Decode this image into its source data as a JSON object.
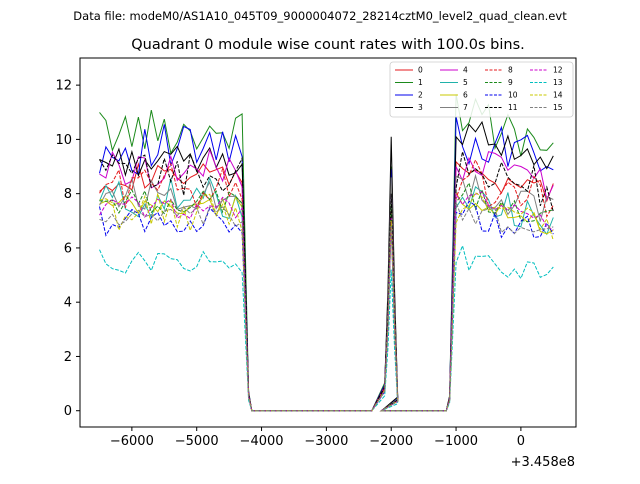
{
  "figure": {
    "suptitle": "Data file: modeM0/AS1A10_045T09_9000004072_28214cztM0_level2_quad_clean.evt"
  },
  "chart_data": {
    "type": "line",
    "title": "Quadrant 0 module wise count rates with 100.0s bins.",
    "xlabel": "",
    "ylabel": "",
    "x_offset_label": "+3.458e8",
    "xlim": [
      -6800,
      850
    ],
    "ylim": [
      -0.6,
      13.0
    ],
    "xticks": [
      -6000,
      -5000,
      -4000,
      -3000,
      -2000,
      -1000,
      0
    ],
    "xtick_labels": [
      "−6000",
      "−5000",
      "−4000",
      "−3000",
      "−2000",
      "−1000",
      "0"
    ],
    "yticks": [
      0,
      2,
      4,
      6,
      8,
      10,
      12
    ],
    "ytick_labels": [
      "0",
      "2",
      "4",
      "6",
      "8",
      "10",
      "12"
    ],
    "grid": false,
    "legend_location": "top-right",
    "legend_columns": 4,
    "segments": [
      {
        "start": -6500,
        "end": -4250,
        "step": 100
      },
      {
        "start": -2050,
        "end": -1950,
        "step": 50
      },
      {
        "start": -1000,
        "end": 550,
        "step": 100
      }
    ],
    "zero_x": [
      -4150,
      -4050,
      -3900,
      -3700,
      -3500,
      -3300,
      -3100,
      -2900,
      -2700,
      -2500,
      -2300,
      -2150,
      -1850,
      -1700,
      -1500,
      -1300,
      -1150
    ],
    "edge_points": [
      {
        "x": -4200,
        "frac": 0.07
      },
      {
        "x": -2100,
        "frac": 0.1
      },
      {
        "x": -1900,
        "frac": 0.05
      },
      {
        "x": -1100,
        "frac": 0.05
      }
    ],
    "end_point": {
      "x": 550,
      "frac": 0.32
    },
    "series": [
      {
        "name": "0",
        "color": "#e41a1c",
        "dash": "solid",
        "seg1": 8.6,
        "spike": 7.8,
        "seg3": 9.0
      },
      {
        "name": "1",
        "color": "#1b8a1b",
        "dash": "solid",
        "seg1": 10.3,
        "spike": 9.0,
        "seg3": 10.9
      },
      {
        "name": "2",
        "color": "#0000ee",
        "dash": "solid",
        "seg1": 9.6,
        "spike": 8.9,
        "seg3": 10.2
      },
      {
        "name": "3",
        "color": "#000000",
        "dash": "solid",
        "seg1": 9.2,
        "spike": 10.1,
        "seg3": 10.5
      },
      {
        "name": "4",
        "color": "#cc00cc",
        "dash": "solid",
        "seg1": 8.9,
        "spike": 8.3,
        "seg3": 9.3
      },
      {
        "name": "5",
        "color": "#20b2aa",
        "dash": "solid",
        "seg1": 7.8,
        "spike": 7.2,
        "seg3": 8.0
      },
      {
        "name": "6",
        "color": "#c8c800",
        "dash": "solid",
        "seg1": 7.5,
        "spike": 7.0,
        "seg3": 7.7
      },
      {
        "name": "7",
        "color": "#808080",
        "dash": "solid",
        "seg1": 8.0,
        "spike": 8.6,
        "seg3": 8.3
      },
      {
        "name": "8",
        "color": "#e41a1c",
        "dash": "dashed",
        "seg1": 8.3,
        "spike": 7.4,
        "seg3": 8.7
      },
      {
        "name": "9",
        "color": "#1b8a1b",
        "dash": "dashed",
        "seg1": 7.7,
        "spike": 7.6,
        "seg3": 8.1
      },
      {
        "name": "10",
        "color": "#0000ee",
        "dash": "dashed",
        "seg1": 7.0,
        "spike": 6.9,
        "seg3": 7.3
      },
      {
        "name": "11",
        "color": "#000000",
        "dash": "dashed",
        "seg1": 8.7,
        "spike": 8.0,
        "seg3": 9.1
      },
      {
        "name": "12",
        "color": "#cc00cc",
        "dash": "dashed",
        "seg1": 7.5,
        "spike": 7.1,
        "seg3": 7.9
      },
      {
        "name": "13",
        "color": "#00bfbf",
        "dash": "dashed",
        "seg1": 5.5,
        "spike": 5.2,
        "seg3": 5.7
      },
      {
        "name": "14",
        "color": "#c8c800",
        "dash": "dashed",
        "seg1": 7.3,
        "spike": 7.0,
        "seg3": 7.6
      },
      {
        "name": "15",
        "color": "#808080",
        "dash": "dashed",
        "seg1": 7.1,
        "spike": 6.8,
        "seg3": 7.4
      }
    ]
  }
}
